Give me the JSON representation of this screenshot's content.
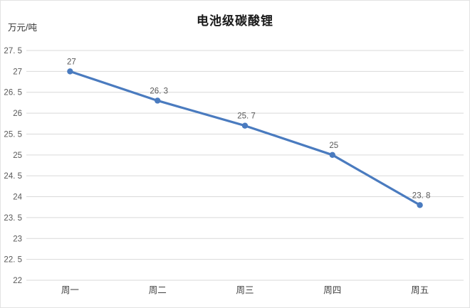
{
  "chart": {
    "title": "电池级碳酸锂",
    "unit_label": "万元/吨"
  },
  "chart_data": {
    "type": "line",
    "title": "电池级碳酸锂",
    "ylabel": "万元/吨",
    "xlabel": "",
    "categories": [
      "周一",
      "周二",
      "周三",
      "周四",
      "周五"
    ],
    "series": [
      {
        "name": "电池级碳酸锂",
        "values": [
          27,
          26.3,
          25.7,
          25,
          23.8
        ],
        "point_labels": [
          "27",
          "26. 3",
          "25. 7",
          "25",
          "23. 8"
        ]
      }
    ],
    "y_ticks": [
      27.5,
      27,
      26.5,
      26,
      25.5,
      25,
      24.5,
      24,
      23.5,
      23,
      22.5,
      22
    ],
    "y_tick_labels": [
      "27. 5",
      "27",
      "26. 5",
      "26",
      "25. 5",
      "25",
      "24. 5",
      "24",
      "23. 5",
      "23",
      "22. 5",
      "22"
    ],
    "ylim": [
      22,
      27.5
    ],
    "grid": true,
    "legend_position": "none",
    "colors": {
      "line": "#4a7bbf",
      "marker": "#4a7bbf",
      "gridline": "#d9d9d9",
      "tick_text": "#595959",
      "category_text": "#404040",
      "point_label_text": "#595959",
      "title_text": "#1a1a1a",
      "background": "#ffffff"
    }
  }
}
